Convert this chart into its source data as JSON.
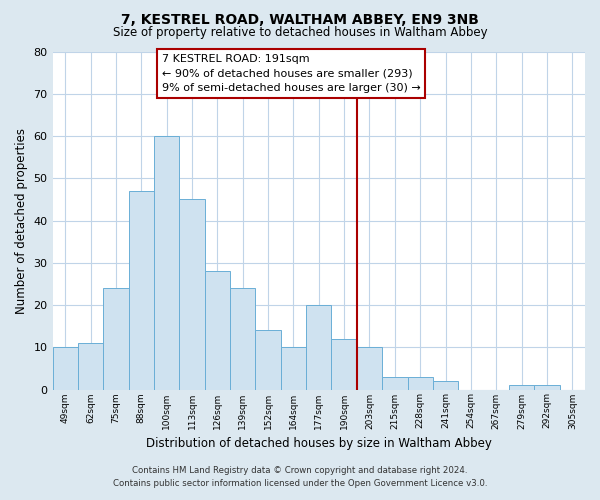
{
  "title1": "7, KESTREL ROAD, WALTHAM ABBEY, EN9 3NB",
  "title2": "Size of property relative to detached houses in Waltham Abbey",
  "xlabel": "Distribution of detached houses by size in Waltham Abbey",
  "ylabel": "Number of detached properties",
  "bar_labels": [
    "49sqm",
    "62sqm",
    "75sqm",
    "88sqm",
    "100sqm",
    "113sqm",
    "126sqm",
    "139sqm",
    "152sqm",
    "164sqm",
    "177sqm",
    "190sqm",
    "203sqm",
    "215sqm",
    "228sqm",
    "241sqm",
    "254sqm",
    "267sqm",
    "279sqm",
    "292sqm",
    "305sqm"
  ],
  "bar_values": [
    10,
    11,
    24,
    47,
    60,
    45,
    28,
    24,
    14,
    10,
    20,
    12,
    10,
    3,
    3,
    2,
    0,
    0,
    1,
    1,
    0
  ],
  "bar_color": "#cfe2f0",
  "bar_edgecolor": "#6aaed6",
  "vline_color": "#aa0000",
  "annotation_text": "7 KESTREL ROAD: 191sqm\n← 90% of detached houses are smaller (293)\n9% of semi-detached houses are larger (30) →",
  "annotation_box_edgecolor": "#aa0000",
  "annotation_fontsize": 8.0,
  "ylim": [
    0,
    80
  ],
  "yticks": [
    0,
    10,
    20,
    30,
    40,
    50,
    60,
    70,
    80
  ],
  "footer1": "Contains HM Land Registry data © Crown copyright and database right 2024.",
  "footer2": "Contains public sector information licensed under the Open Government Licence v3.0.",
  "bg_color": "#dce8f0",
  "plot_bg_color": "#ffffff",
  "grid_color": "#c0d4e8"
}
